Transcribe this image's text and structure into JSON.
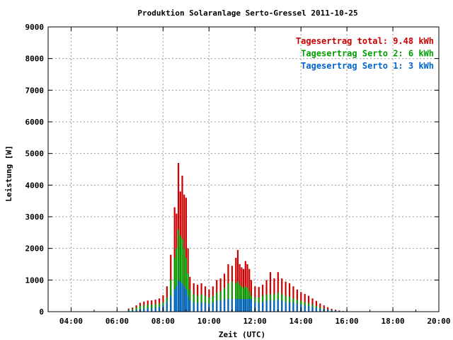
{
  "chart_data": {
    "type": "bar",
    "title": "Produktion Solaranlage Serto-Gressel 2011-10-25",
    "xlabel": "Zeit (UTC)",
    "ylabel": "Leistung [W]",
    "xlim": [
      "03:00",
      "20:00"
    ],
    "ylim": [
      0,
      9000
    ],
    "x_ticks": [
      "04:00",
      "06:00",
      "08:00",
      "10:00",
      "12:00",
      "14:00",
      "16:00",
      "18:00",
      "20:00"
    ],
    "y_ticks": [
      "0",
      "1000",
      "2000",
      "3000",
      "4000",
      "5000",
      "6000",
      "7000",
      "8000",
      "9000"
    ],
    "grid": true,
    "stacked": true,
    "legend_position": "top-right",
    "legend": [
      {
        "label": "Tagesertrag total: 9.48 kWh",
        "color": "#cc0000"
      },
      {
        "label": "Tagesertrag Serto 2: 6 kWh",
        "color": "#00a000"
      },
      {
        "label": "Tagesertrag Serto 1: 3 kWh",
        "color": "#0066cc"
      }
    ],
    "x": [
      "06:30",
      "06:40",
      "06:50",
      "07:00",
      "07:10",
      "07:20",
      "07:30",
      "07:40",
      "07:50",
      "08:00",
      "08:10",
      "08:20",
      "08:30",
      "08:35",
      "08:40",
      "08:45",
      "08:50",
      "08:55",
      "09:00",
      "09:05",
      "09:10",
      "09:20",
      "09:30",
      "09:40",
      "09:50",
      "10:00",
      "10:10",
      "10:20",
      "10:30",
      "10:40",
      "10:50",
      "11:00",
      "11:10",
      "11:15",
      "11:20",
      "11:25",
      "11:30",
      "11:35",
      "11:40",
      "11:45",
      "11:50",
      "12:00",
      "12:10",
      "12:20",
      "12:30",
      "12:40",
      "12:50",
      "13:00",
      "13:10",
      "13:20",
      "13:30",
      "13:40",
      "13:50",
      "14:00",
      "14:10",
      "14:20",
      "14:30",
      "14:40",
      "14:50",
      "15:00",
      "15:10",
      "15:20",
      "15:30",
      "15:40",
      "15:50"
    ],
    "series": [
      {
        "name": "Serto 1",
        "color": "#0066cc",
        "values": [
          30,
          40,
          55,
          80,
          100,
          110,
          120,
          130,
          150,
          200,
          300,
          500,
          700,
          800,
          1000,
          950,
          900,
          800,
          700,
          500,
          350,
          300,
          280,
          300,
          280,
          250,
          300,
          350,
          350,
          400,
          400,
          400,
          400,
          400,
          400,
          400,
          400,
          400,
          400,
          400,
          400,
          300,
          280,
          300,
          350,
          350,
          350,
          400,
          350,
          300,
          300,
          280,
          250,
          220,
          200,
          180,
          150,
          120,
          100,
          80,
          60,
          40,
          30,
          20,
          10
        ]
      },
      {
        "name": "Serto 2",
        "color": "#00a000",
        "values": [
          60,
          80,
          130,
          180,
          200,
          220,
          220,
          240,
          260,
          300,
          450,
          1000,
          1700,
          2000,
          2600,
          2400,
          2300,
          2000,
          1700,
          1200,
          700,
          550,
          500,
          550,
          500,
          450,
          500,
          600,
          650,
          750,
          900,
          950,
          900,
          950,
          850,
          800,
          750,
          800,
          750,
          650,
          500,
          450,
          450,
          500,
          550,
          550,
          550,
          600,
          550,
          500,
          480,
          420,
          380,
          340,
          300,
          260,
          220,
          180,
          140,
          100,
          70,
          50,
          30,
          20,
          10
        ]
      },
      {
        "name": "Total",
        "color": "#cc0000",
        "values": [
          100,
          130,
          200,
          280,
          320,
          350,
          360,
          380,
          420,
          520,
          800,
          1800,
          3300,
          3100,
          4700,
          3800,
          4300,
          3700,
          3600,
          2000,
          1100,
          900,
          850,
          900,
          800,
          700,
          800,
          1000,
          1050,
          1200,
          1500,
          1450,
          1700,
          1950,
          1500,
          1400,
          1350,
          1600,
          1500,
          1350,
          1000,
          800,
          780,
          850,
          1000,
          1250,
          1050,
          1250,
          1050,
          950,
          900,
          800,
          700,
          620,
          560,
          500,
          420,
          340,
          260,
          200,
          140,
          90,
          60,
          40,
          20
        ]
      }
    ]
  }
}
